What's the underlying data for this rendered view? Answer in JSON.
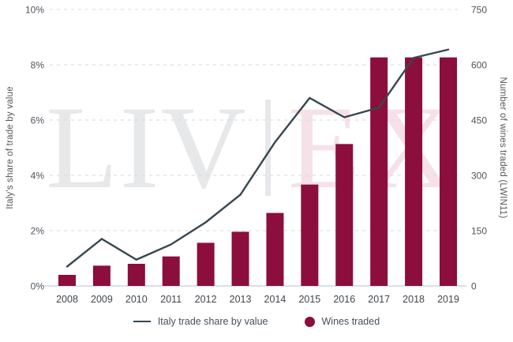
{
  "chart_data": {
    "type": "bar",
    "subtype": "combo-bar-line",
    "title": "",
    "categories": [
      "2008",
      "2009",
      "2010",
      "2011",
      "2012",
      "2013",
      "2014",
      "2015",
      "2016",
      "2017",
      "2018",
      "2019"
    ],
    "series": [
      {
        "name": "Italy trade share by value",
        "type": "line",
        "axis": "left",
        "unit": "%",
        "values": [
          0.7,
          1.7,
          0.95,
          1.5,
          2.3,
          3.3,
          5.2,
          6.8,
          6.1,
          6.45,
          8.25,
          8.55
        ]
      },
      {
        "name": "Wines traded",
        "type": "bar",
        "axis": "right",
        "unit": "wines (LWIN11)",
        "values": [
          30,
          55,
          60,
          80,
          117,
          147,
          198,
          275,
          385,
          620,
          620,
          620
        ]
      }
    ],
    "xlabel": "",
    "ylabel_left": "Italy's share of trade by value",
    "ylabel_right": "Number of wines traded (LWIN11)",
    "axis_left": {
      "min": 0,
      "max": 10,
      "tick_values": [
        0,
        2,
        4,
        6,
        8,
        10
      ],
      "tick_labels": [
        "0%",
        "2%",
        "4%",
        "6%",
        "8%",
        "10%"
      ]
    },
    "axis_right": {
      "min": 0,
      "max": 750,
      "tick_values": [
        0,
        150,
        300,
        450,
        600,
        750
      ],
      "tick_labels": [
        "0",
        "150",
        "300",
        "450",
        "600",
        "750"
      ]
    },
    "grid": "horizontal dashed",
    "legend_position": "bottom-center"
  },
  "watermark": {
    "part1": "LIV",
    "divider": "|",
    "part2": "EX"
  },
  "colors": {
    "bar": "#8b0e3c",
    "line": "#37474f",
    "grid": "#d9d9d9",
    "axis_line": "#ccd9e0",
    "tick_text": "#4d545b",
    "x_tick_text": "#41474e",
    "axis_title_text": "#54585d",
    "legend_text": "#46515a",
    "watermark_gray": "#e7e8ea",
    "watermark_pink": "#f6e1e9"
  }
}
